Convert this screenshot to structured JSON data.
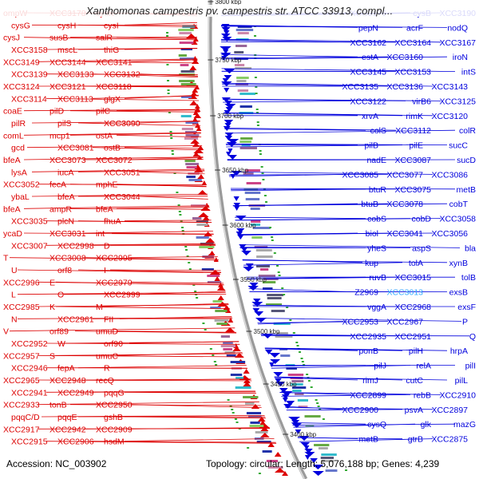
{
  "title": "Xanthomonas campestris pv. campestris str. ATCC 33913, compl...",
  "footer": {
    "accession": "Accession: NC_003902",
    "summary": "Topology: circular; Length: 5,076,188 bp; Genes: 4,239"
  },
  "colors": {
    "forward_strand": "#dd0000",
    "reverse_strand": "#0000dd",
    "highlight": "#33aaff",
    "backbone": "#888888"
  },
  "kbp_marks": [
    "3800 kbp",
    "3750 kbp",
    "3700 kbp",
    "3650 kbp",
    "3600 kbp",
    "3550 kbp",
    "3500 kbp",
    "3450 kbp",
    "3400 kbp"
  ],
  "left_labels": [
    "ompW",
    "XCC3178",
    "cysK",
    "cysG",
    "cysH",
    "cysI",
    "cysJ",
    "susB",
    "salR",
    "XCC3158",
    "mscL",
    "thiG",
    "XCC3149",
    "XCC3144",
    "XCC3141",
    "XCC3139",
    "XCC3133",
    "XCC3132",
    "XCC3124",
    "XCC3121",
    "XCC3118",
    "XCC3114",
    "XCC3113",
    "glgX",
    "coaE",
    "pilD",
    "pilC",
    "pilR",
    "pilS",
    "XCC3090",
    "comL",
    "mcp1",
    "ostA",
    "gcd",
    "XCC3081",
    "ostB",
    "bfeA",
    "XCC3073",
    "XCC3072",
    "lysA",
    "iucA",
    "XCC3051",
    "XCC3052",
    "fecA",
    "mphE",
    "ybaL",
    "bfeA",
    "XCC3044",
    "bfeA",
    "ampR",
    "bfeA",
    "XCC3035",
    "plcN",
    "fhuA",
    "ycaD",
    "XCC3031",
    "int",
    "XCC3007",
    "XCC2998",
    "D",
    "T",
    "XCC3008",
    "XCC2995",
    "U",
    "orf8",
    "I",
    "XCC2996",
    "E",
    "XCC2979",
    "L",
    "O",
    "XCC2999",
    "XCC2985",
    "K",
    "M",
    "N",
    "XCC2961",
    "FII",
    "V",
    "orf89",
    "umuD",
    "XCC2952",
    "W",
    "orf90",
    "XCC2957",
    "S",
    "umuC",
    "XCC2946",
    "fepA",
    "R",
    "XCC2965",
    "XCC2948",
    "recQ",
    "XCC2941",
    "XCC2949",
    "pqqG",
    "XCC2933",
    "tonB",
    "XCC2950",
    "pqqC/D",
    "pqqE",
    "gshB",
    "XCC2917",
    "XCC2942",
    "XCC2909",
    "XCC2915",
    "XCC2906",
    "hsdM"
  ],
  "right_labels": [
    "XCC3190",
    "cysB",
    "XCC3176",
    "nodQ",
    "acrF",
    "pepN",
    "XCC3167",
    "XCC3164",
    "XCC3162",
    "iroN",
    "XCC3160",
    "estA",
    "intS",
    "XCC3153",
    "XCC3145",
    "XCC3143",
    "XCC3136",
    "XCC3135",
    "XCC3125",
    "virB6",
    "XCC3122",
    "XCC3120",
    "rimK",
    "xrvA",
    "colR",
    "XCC3112",
    "colS",
    "sucC",
    "pilE",
    "pilB",
    "sucD",
    "XCC3087",
    "nadE",
    "XCC3086",
    "XCC3077",
    "XCC3085",
    "metB",
    "XCC3075",
    "btuR",
    "cobT",
    "XCC3078",
    "btuB",
    "XCC3058",
    "cobD",
    "cobS",
    "XCC3056",
    "XCC3041",
    "biol",
    "bla",
    "aspS",
    "yheS",
    "xynB",
    "tolA",
    "kup",
    "tolB",
    "XCC3015",
    "ruvB",
    "exsB",
    "XCC3013",
    "Z2969",
    "exsF",
    "XCC2968",
    "vggA",
    "P",
    "XCC2967",
    "XCC2953",
    "Q",
    "XCC2951",
    "XCC2935",
    "hrpA",
    "pilH",
    "ponB",
    "pilI",
    "relA",
    "pilJ",
    "pilL",
    "cutC",
    "rimJ",
    "XCC2910",
    "rebB",
    "XCC2899",
    "XCC2897",
    "psvA",
    "XCC2900",
    "mazG",
    "glk",
    "cysQ",
    "XCC2875",
    "gtrB",
    "metB"
  ]
}
